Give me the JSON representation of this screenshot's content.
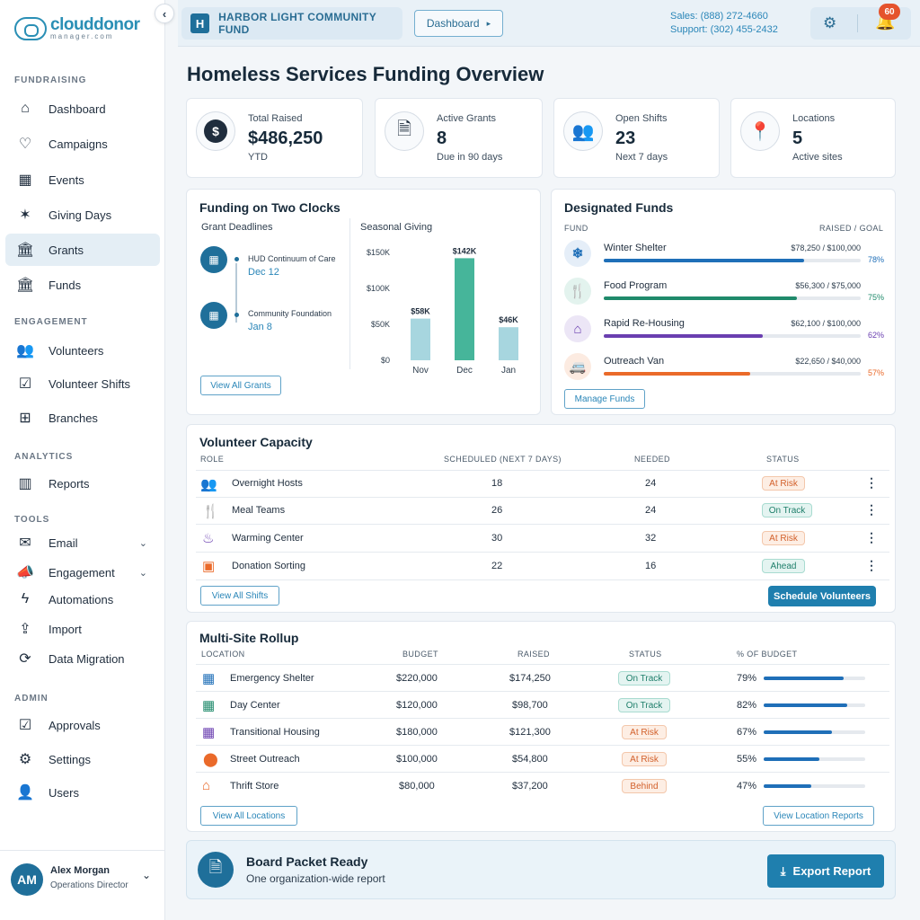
{
  "brand": {
    "word": "clouddonor",
    "sub": "manager.com"
  },
  "sidebar": {
    "sections": [
      "FUNDRAISING",
      "ENGAGEMENT",
      "ANALYTICS",
      "TOOLS",
      "ADMIN"
    ],
    "items": [
      {
        "label": "Dashboard",
        "icon": "home-icon"
      },
      {
        "label": "Campaigns",
        "icon": "heart-hand-icon"
      },
      {
        "label": "Events",
        "icon": "calendar-icon"
      },
      {
        "label": "Giving Days",
        "icon": "party-icon"
      },
      {
        "label": "Grants",
        "icon": "bank-icon"
      },
      {
        "label": "Funds",
        "icon": "bank-icon"
      },
      {
        "label": "Volunteers",
        "icon": "people-icon"
      },
      {
        "label": "Volunteer Shifts",
        "icon": "calendar-check-icon"
      },
      {
        "label": "Branches",
        "icon": "branches-icon"
      },
      {
        "label": "Reports",
        "icon": "bar-chart-icon"
      },
      {
        "label": "Email",
        "icon": "mail-icon"
      },
      {
        "label": "Engagement",
        "icon": "megaphone-icon"
      },
      {
        "label": "Automations",
        "icon": "bolt-icon"
      },
      {
        "label": "Import",
        "icon": "upload-icon"
      },
      {
        "label": "Data Migration",
        "icon": "sync-icon"
      },
      {
        "label": "Approvals",
        "icon": "clipboard-check-icon"
      },
      {
        "label": "Settings",
        "icon": "gear-icon"
      },
      {
        "label": "Users",
        "icon": "user-icon"
      }
    ],
    "active": "Grants"
  },
  "user": {
    "initials": "AM",
    "name": "Alex Morgan",
    "role": "Operations Director"
  },
  "topbar": {
    "org_letter": "H",
    "org_name": "HARBOR LIGHT COMMUNITY FUND",
    "dashboard_btn": "Dashboard",
    "sales": "Sales: (888) 272-4660",
    "support": "Support: (302) 455-2432",
    "notifications": "60"
  },
  "page_title": "Homeless Services Funding Overview",
  "stats": [
    {
      "label": "Total Raised",
      "value": "$486,250",
      "sub": "YTD",
      "icon": "dollar-icon"
    },
    {
      "label": "Active Grants",
      "value": "8",
      "sub": "Due in 90 days",
      "icon": "document-icon"
    },
    {
      "label": "Open Shifts",
      "value": "23",
      "sub": "Next 7 days",
      "icon": "people-icon"
    },
    {
      "label": "Locations",
      "value": "5",
      "sub": "Active sites",
      "icon": "map-pin-icon"
    }
  ],
  "two_clocks": {
    "title": "Funding on Two Clocks",
    "grant_head": "Grant Deadlines",
    "deadlines": [
      {
        "name": "HUD Continuum of Care",
        "date": "Dec 12"
      },
      {
        "name": "Community Foundation",
        "date": "Jan 8"
      }
    ],
    "view_btn": "View All Grants",
    "seasonal_head": "Seasonal Giving"
  },
  "chart_data": {
    "type": "bar",
    "title": "Seasonal Giving",
    "categories": [
      "Nov",
      "Dec",
      "Jan"
    ],
    "values": [
      58,
      142,
      46
    ],
    "data_labels": [
      "$58K",
      "$142K",
      "$46K"
    ],
    "ytick_labels": [
      "$0",
      "$50K",
      "$100K",
      "$150K"
    ],
    "ylim": [
      0,
      150
    ],
    "colors": [
      "#a7d6df",
      "#46b59a",
      "#a7d6df"
    ],
    "grid": false
  },
  "designated": {
    "title": "Designated Funds",
    "col_fund": "FUND",
    "col_raised": "RAISED / GOAL",
    "funds": [
      {
        "name": "Winter Shelter",
        "amount": "$78,250 / $100,000",
        "pct": "78%",
        "frac": 0.78,
        "color": "#1f6fb8",
        "icon": "snowflake-icon"
      },
      {
        "name": "Food Program",
        "amount": "$56,300 / $75,000",
        "pct": "75%",
        "frac": 0.75,
        "color": "#1f8a6b",
        "icon": "utensils-icon"
      },
      {
        "name": "Rapid Re-Housing",
        "amount": "$62,100 / $100,000",
        "pct": "62%",
        "frac": 0.62,
        "color": "#6a3fb0",
        "icon": "house-icon"
      },
      {
        "name": "Outreach Van",
        "amount": "$22,650 / $40,000",
        "pct": "57%",
        "frac": 0.57,
        "color": "#ea6a2a",
        "icon": "van-icon"
      }
    ],
    "manage_btn": "Manage Funds"
  },
  "volunteer": {
    "title": "Volunteer Capacity",
    "headers": [
      "ROLE",
      "SCHEDULED (NEXT 7 DAYS)",
      "NEEDED",
      "STATUS"
    ],
    "rows": [
      {
        "role": "Overnight Hosts",
        "scheduled": "18",
        "needed": "24",
        "status": "At Risk",
        "kind": "risk",
        "icon": "people-icon",
        "color": "#1f6fb8"
      },
      {
        "role": "Meal Teams",
        "scheduled": "26",
        "needed": "24",
        "status": "On Track",
        "kind": "ok",
        "icon": "utensils-icon",
        "color": "#1f8a6b"
      },
      {
        "role": "Warming Center",
        "scheduled": "30",
        "needed": "32",
        "status": "At Risk",
        "kind": "risk",
        "icon": "heat-icon",
        "color": "#6a3fb0"
      },
      {
        "role": "Donation Sorting",
        "scheduled": "22",
        "needed": "16",
        "status": "Ahead",
        "kind": "ahead",
        "icon": "box-icon",
        "color": "#ea6a2a"
      }
    ],
    "view_btn": "View All Shifts",
    "schedule_btn": "Schedule Volunteers"
  },
  "rollup": {
    "title": "Multi-Site Rollup",
    "headers": [
      "LOCATION",
      "BUDGET",
      "RAISED",
      "STATUS",
      "% OF BUDGET"
    ],
    "rows": [
      {
        "location": "Emergency Shelter",
        "budget": "$220,000",
        "raised": "$174,250",
        "status": "On Track",
        "kind": "ok",
        "pct": "79%",
        "frac": 0.79,
        "icon": "building-icon",
        "color": "#1f6fb8"
      },
      {
        "location": "Day Center",
        "budget": "$120,000",
        "raised": "$98,700",
        "status": "On Track",
        "kind": "ok",
        "pct": "82%",
        "frac": 0.82,
        "icon": "building-icon",
        "color": "#1f8a6b"
      },
      {
        "location": "Transitional Housing",
        "budget": "$180,000",
        "raised": "$121,300",
        "status": "At Risk",
        "kind": "risk",
        "pct": "67%",
        "frac": 0.67,
        "icon": "building-icon",
        "color": "#6a3fb0"
      },
      {
        "location": "Street Outreach",
        "budget": "$100,000",
        "raised": "$54,800",
        "status": "At Risk",
        "kind": "risk",
        "pct": "55%",
        "frac": 0.55,
        "icon": "map-pin-icon",
        "color": "#ea6a2a"
      },
      {
        "location": "Thrift Store",
        "budget": "$80,000",
        "raised": "$37,200",
        "status": "Behind",
        "kind": "behind",
        "pct": "47%",
        "frac": 0.47,
        "icon": "store-icon",
        "color": "#ea6a2a"
      }
    ],
    "view_btn": "View All Locations",
    "report_btn": "View Location Reports"
  },
  "export": {
    "title": "Board Packet Ready",
    "sub": "One organization-wide report",
    "btn": "Export Report"
  }
}
